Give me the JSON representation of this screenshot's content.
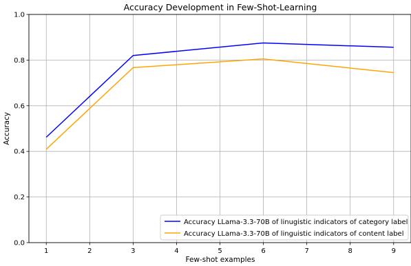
{
  "chart_data": {
    "type": "line",
    "title": "Accuracy Development in Few-Shot-Learning",
    "xlabel": "Few-shot examples",
    "ylabel": "Accuracy",
    "x": [
      1,
      3,
      6,
      9
    ],
    "xticks": [
      1,
      2,
      3,
      4,
      5,
      6,
      7,
      8,
      9
    ],
    "yticks": [
      0.0,
      0.2,
      0.4,
      0.6,
      0.8,
      1.0
    ],
    "xlim": [
      0.6,
      9.4
    ],
    "ylim": [
      0.0,
      1.0
    ],
    "grid": true,
    "legend_position": "bottom-right",
    "series": [
      {
        "name": "Accuracy LLama-3.3-70B of linugistic indicators of category label",
        "color": "#0000ff",
        "values": [
          0.462,
          0.82,
          0.875,
          0.856
        ]
      },
      {
        "name": "Accuracy LLama-3.3-70B of linguistic indicators of content label",
        "color": "#ffa500",
        "values": [
          0.409,
          0.767,
          0.805,
          0.745
        ]
      }
    ]
  }
}
